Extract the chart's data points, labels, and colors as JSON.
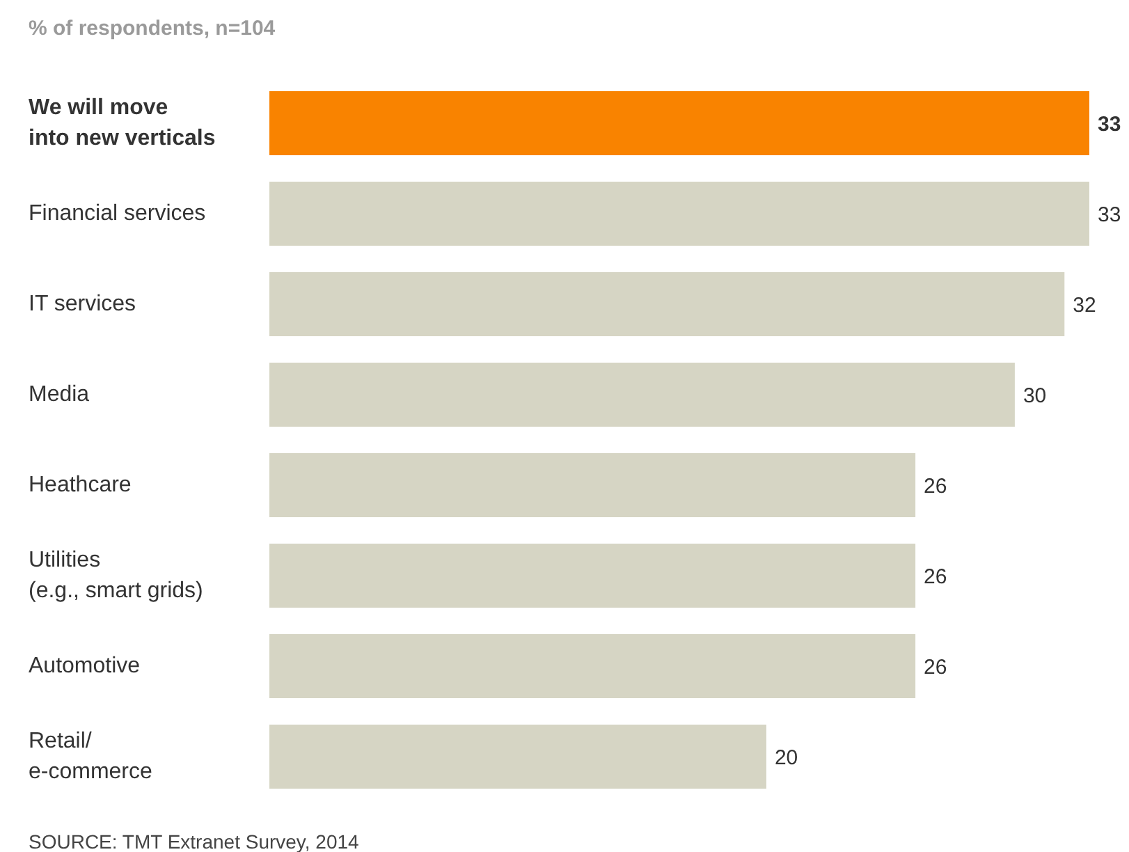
{
  "chart_data": {
    "type": "bar",
    "orientation": "horizontal",
    "subtitle": "% of respondents, n=104",
    "categories": [
      "We will move\ninto new verticals",
      "Financial services",
      "IT services",
      "Media",
      "Heathcare",
      "Utilities\n(e.g., smart grids)",
      "Automotive",
      "Retail/\ne-commerce"
    ],
    "values": [
      33,
      33,
      32,
      30,
      26,
      26,
      26,
      20
    ],
    "colors": [
      "#f98300",
      "#d6d5c4",
      "#d6d5c4",
      "#d6d5c4",
      "#d6d5c4",
      "#d6d5c4",
      "#d6d5c4",
      "#d6d5c4"
    ],
    "data_labels": true,
    "annotations": [
      "SOURCE: TMT Extranet Survey, 2014"
    ]
  }
}
